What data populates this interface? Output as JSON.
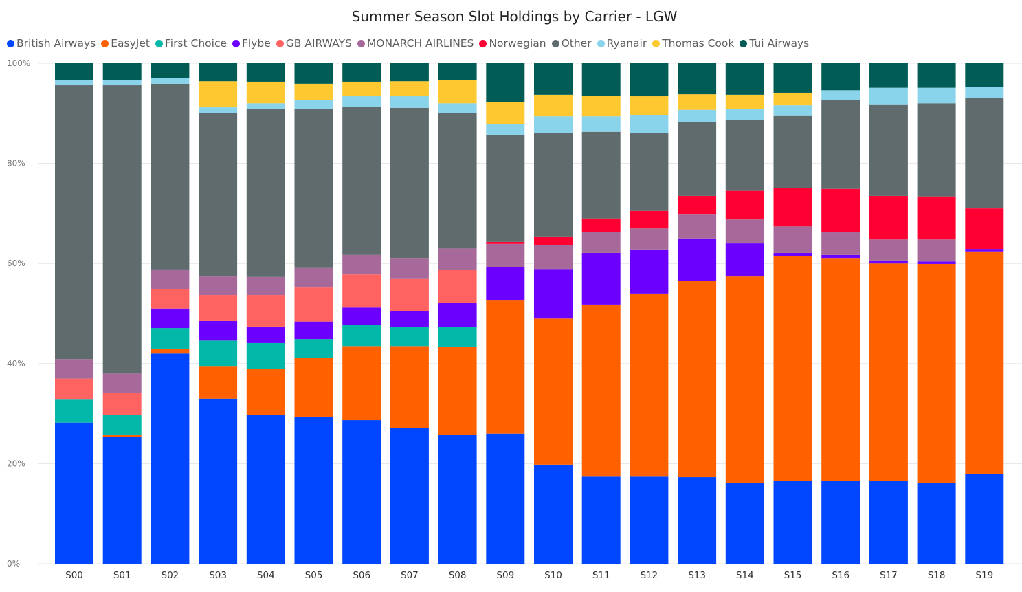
{
  "chart_data": {
    "type": "bar",
    "stacked": "percent",
    "title": "Summer Season Slot Holdings by Carrier - LGW",
    "xlabel": "",
    "ylabel": "",
    "ylim": [
      0,
      100
    ],
    "yticks": [
      "0%",
      "20%",
      "40%",
      "60%",
      "80%",
      "100%"
    ],
    "legend_position": "top-left",
    "grid": true,
    "categories": [
      "S00",
      "S01",
      "S02",
      "S03",
      "S04",
      "S05",
      "S06",
      "S07",
      "S08",
      "S09",
      "S10",
      "S11",
      "S12",
      "S13",
      "S14",
      "S15",
      "S16",
      "S17",
      "S18",
      "S19"
    ],
    "series": [
      {
        "name": "British Airways",
        "color": "#0046FF",
        "values": [
          28.2,
          25.4,
          42.0,
          33.0,
          29.7,
          29.4,
          28.7,
          27.1,
          25.7,
          26.0,
          19.8,
          17.4,
          17.4,
          17.3,
          16.1,
          16.6,
          16.5,
          16.5,
          16.1,
          17.9
        ]
      },
      {
        "name": "EasyJet",
        "color": "#FF6000",
        "values": [
          0,
          0.3,
          1.0,
          6.4,
          9.2,
          11.7,
          14.8,
          16.4,
          17.6,
          26.6,
          29.2,
          34.4,
          36.6,
          39.2,
          41.3,
          44.9,
          44.6,
          43.5,
          43.8,
          44.5
        ]
      },
      {
        "name": "First Choice",
        "color": "#03B7A9",
        "values": [
          4.6,
          4.1,
          4.1,
          5.2,
          5.2,
          3.8,
          4.2,
          3.8,
          4.0,
          0,
          0,
          0,
          0,
          0,
          0,
          0,
          0,
          0,
          0,
          0
        ]
      },
      {
        "name": "Flybe",
        "color": "#6B00FF",
        "values": [
          0,
          0,
          3.9,
          3.9,
          3.3,
          3.5,
          3.5,
          3.2,
          4.9,
          6.7,
          9.9,
          10.3,
          8.8,
          8.5,
          6.6,
          0.6,
          0.6,
          0.6,
          0.5,
          0.5
        ]
      },
      {
        "name": "GB AIRWAYS",
        "color": "#FF6361",
        "values": [
          4.2,
          4.3,
          3.9,
          5.2,
          6.3,
          6.8,
          6.6,
          6.4,
          6.5,
          0,
          0,
          0,
          0,
          0,
          0,
          0,
          0,
          0,
          0,
          0
        ]
      },
      {
        "name": "MONARCH AIRLINES",
        "color": "#A66999",
        "values": [
          3.9,
          3.9,
          3.9,
          3.7,
          3.6,
          3.9,
          3.9,
          4.2,
          4.3,
          4.6,
          4.7,
          4.2,
          4.2,
          4.9,
          4.8,
          5.3,
          4.5,
          4.2,
          4.4,
          0
        ]
      },
      {
        "name": "Norwegian",
        "color": "#FF0033",
        "values": [
          0,
          0,
          0,
          0,
          0,
          0,
          0,
          0,
          0,
          0.4,
          1.8,
          2.7,
          3.5,
          3.6,
          5.7,
          7.7,
          8.7,
          8.7,
          8.6,
          8.1
        ]
      },
      {
        "name": "Other",
        "color": "#5F6B6D",
        "values": [
          54.7,
          57.6,
          37.1,
          32.7,
          33.6,
          31.8,
          29.6,
          30.0,
          27.0,
          21.3,
          20.6,
          17.3,
          15.6,
          14.7,
          14.2,
          14.5,
          17.8,
          18.3,
          18.6,
          22.1
        ]
      },
      {
        "name": "Ryanair",
        "color": "#8AD4EB",
        "values": [
          1.1,
          1.1,
          1.1,
          1.1,
          1.1,
          1.8,
          2.1,
          2.3,
          2.0,
          2.3,
          3.4,
          3.1,
          3.6,
          2.5,
          2.1,
          2.0,
          1.9,
          3.3,
          3.1,
          2.2
        ]
      },
      {
        "name": "Thomas Cook",
        "color": "#FEC831",
        "values": [
          0,
          0,
          0,
          5.2,
          4.3,
          3.2,
          2.9,
          3.0,
          4.6,
          4.3,
          4.3,
          4.1,
          3.7,
          3.1,
          2.9,
          2.5,
          0,
          0,
          0,
          0
        ]
      },
      {
        "name": "Tui Airways",
        "color": "#015C55",
        "values": [
          3.3,
          3.3,
          3.0,
          3.6,
          3.7,
          4.1,
          3.7,
          3.6,
          3.4,
          7.8,
          6.3,
          6.5,
          6.6,
          6.2,
          6.3,
          5.9,
          5.4,
          4.9,
          4.9,
          4.7
        ]
      }
    ]
  }
}
